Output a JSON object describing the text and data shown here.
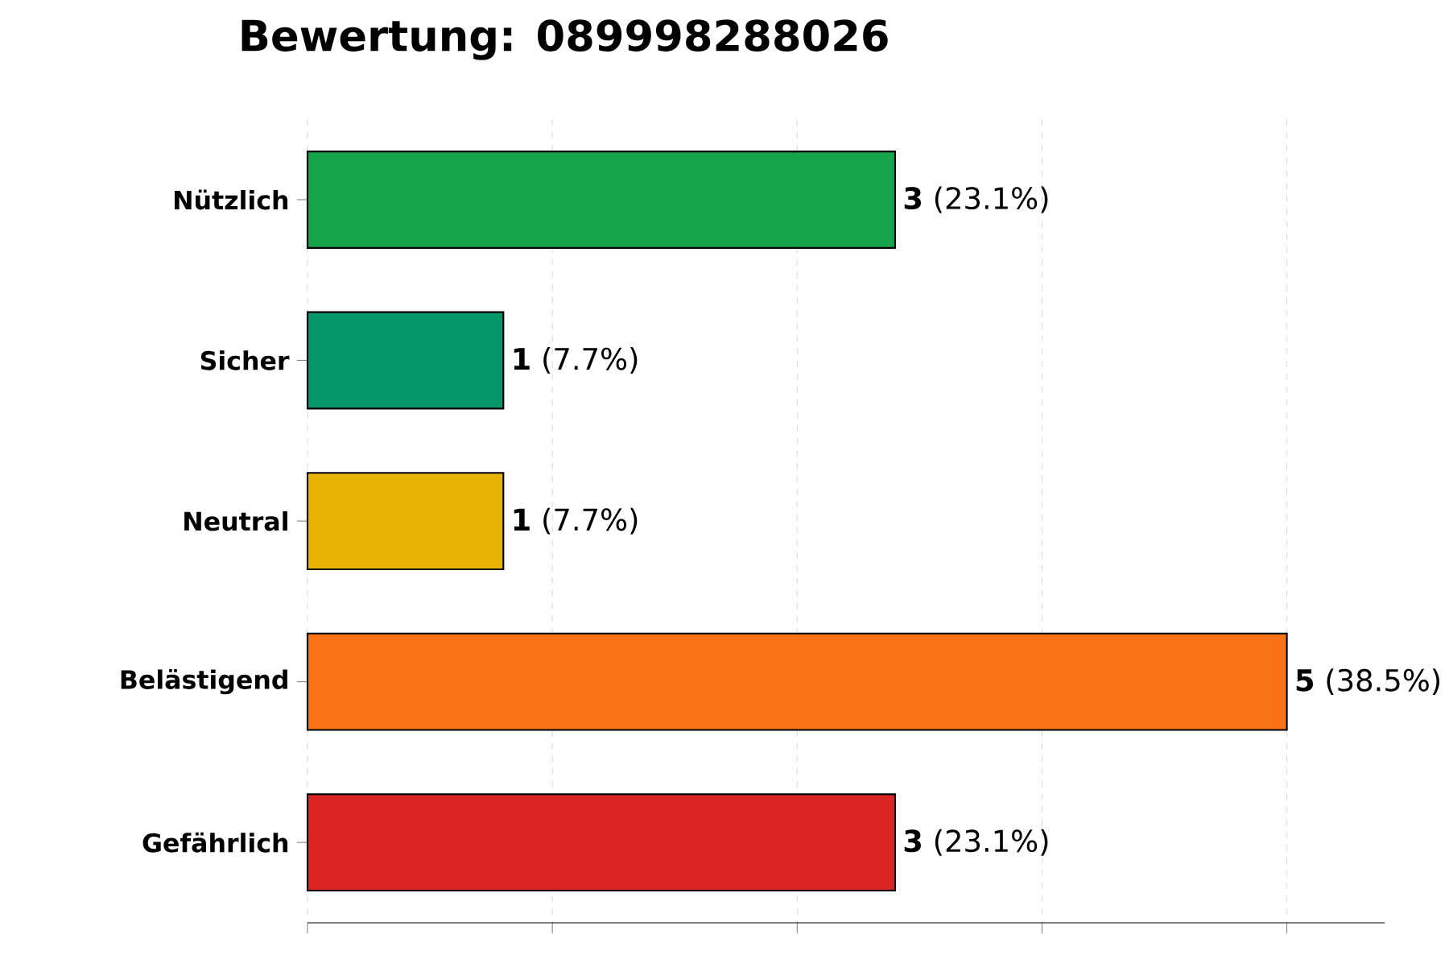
{
  "chart_data": {
    "type": "bar",
    "orientation": "horizontal",
    "title": "Bewertung: 089998288026",
    "categories": [
      "Nützlich",
      "Sicher",
      "Neutral",
      "Belästigend",
      "Gefährlich"
    ],
    "values": [
      3,
      1,
      1,
      5,
      3
    ],
    "colors": [
      "#16a34a",
      "#059669",
      "#eab308",
      "#f97316",
      "#dc2626"
    ],
    "value_labels": [
      "**3** (23.1%)",
      "**1** (7.7%)",
      "**1** (7.7%)",
      "**5** (38.5%)",
      "**3** (23.1%)"
    ],
    "xlim": [
      0,
      5.5
    ],
    "xticks": [
      {
        "value": 0,
        "label": null
      },
      {
        "value": 1.25,
        "label": null
      },
      {
        "value": 2.5,
        "label": null
      },
      {
        "value": 3.75,
        "label": null
      },
      {
        "value": 5,
        "label": null
      }
    ],
    "tick_labels": "y",
    "grid": "x"
  }
}
